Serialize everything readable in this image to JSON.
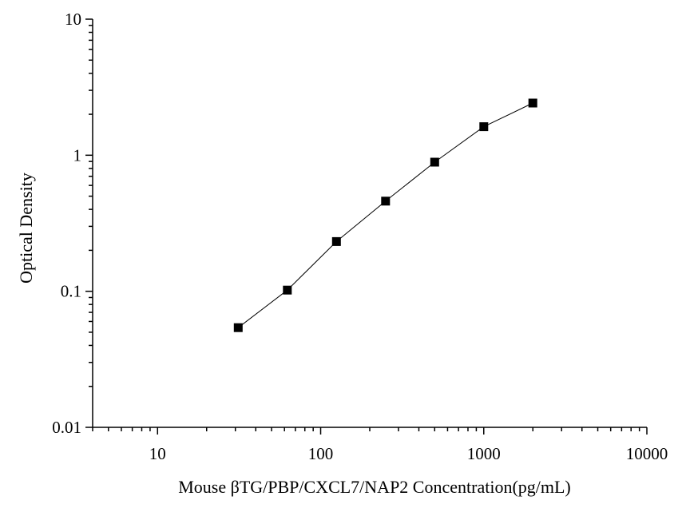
{
  "chart_data": {
    "type": "scatter",
    "xlabel": "Mouse βTG/PBP/CXCL7/NAP2  Concentration(pg/mL)",
    "ylabel": "Optical Density",
    "x_scale": "log",
    "y_scale": "log",
    "xlim": [
      4,
      10000
    ],
    "ylim": [
      0.01,
      10
    ],
    "x_ticks": [
      {
        "value": 10,
        "label": "10"
      },
      {
        "value": 100,
        "label": "100"
      },
      {
        "value": 1000,
        "label": "1000"
      },
      {
        "value": 10000,
        "label": "10000"
      }
    ],
    "y_ticks": [
      {
        "value": 0.01,
        "label": "0.01"
      },
      {
        "value": 0.1,
        "label": "0.1"
      },
      {
        "value": 1,
        "label": "1"
      },
      {
        "value": 10,
        "label": "10"
      }
    ],
    "grid": false,
    "marker": "square",
    "colors": {
      "marker": "#000000",
      "line": "#000000",
      "axis": "#000000"
    },
    "series": [
      {
        "x": [
          31.25,
          62.5,
          125,
          250,
          500,
          1000,
          2000
        ],
        "y": [
          0.054,
          0.102,
          0.232,
          0.46,
          0.89,
          1.62,
          2.42
        ]
      }
    ]
  }
}
